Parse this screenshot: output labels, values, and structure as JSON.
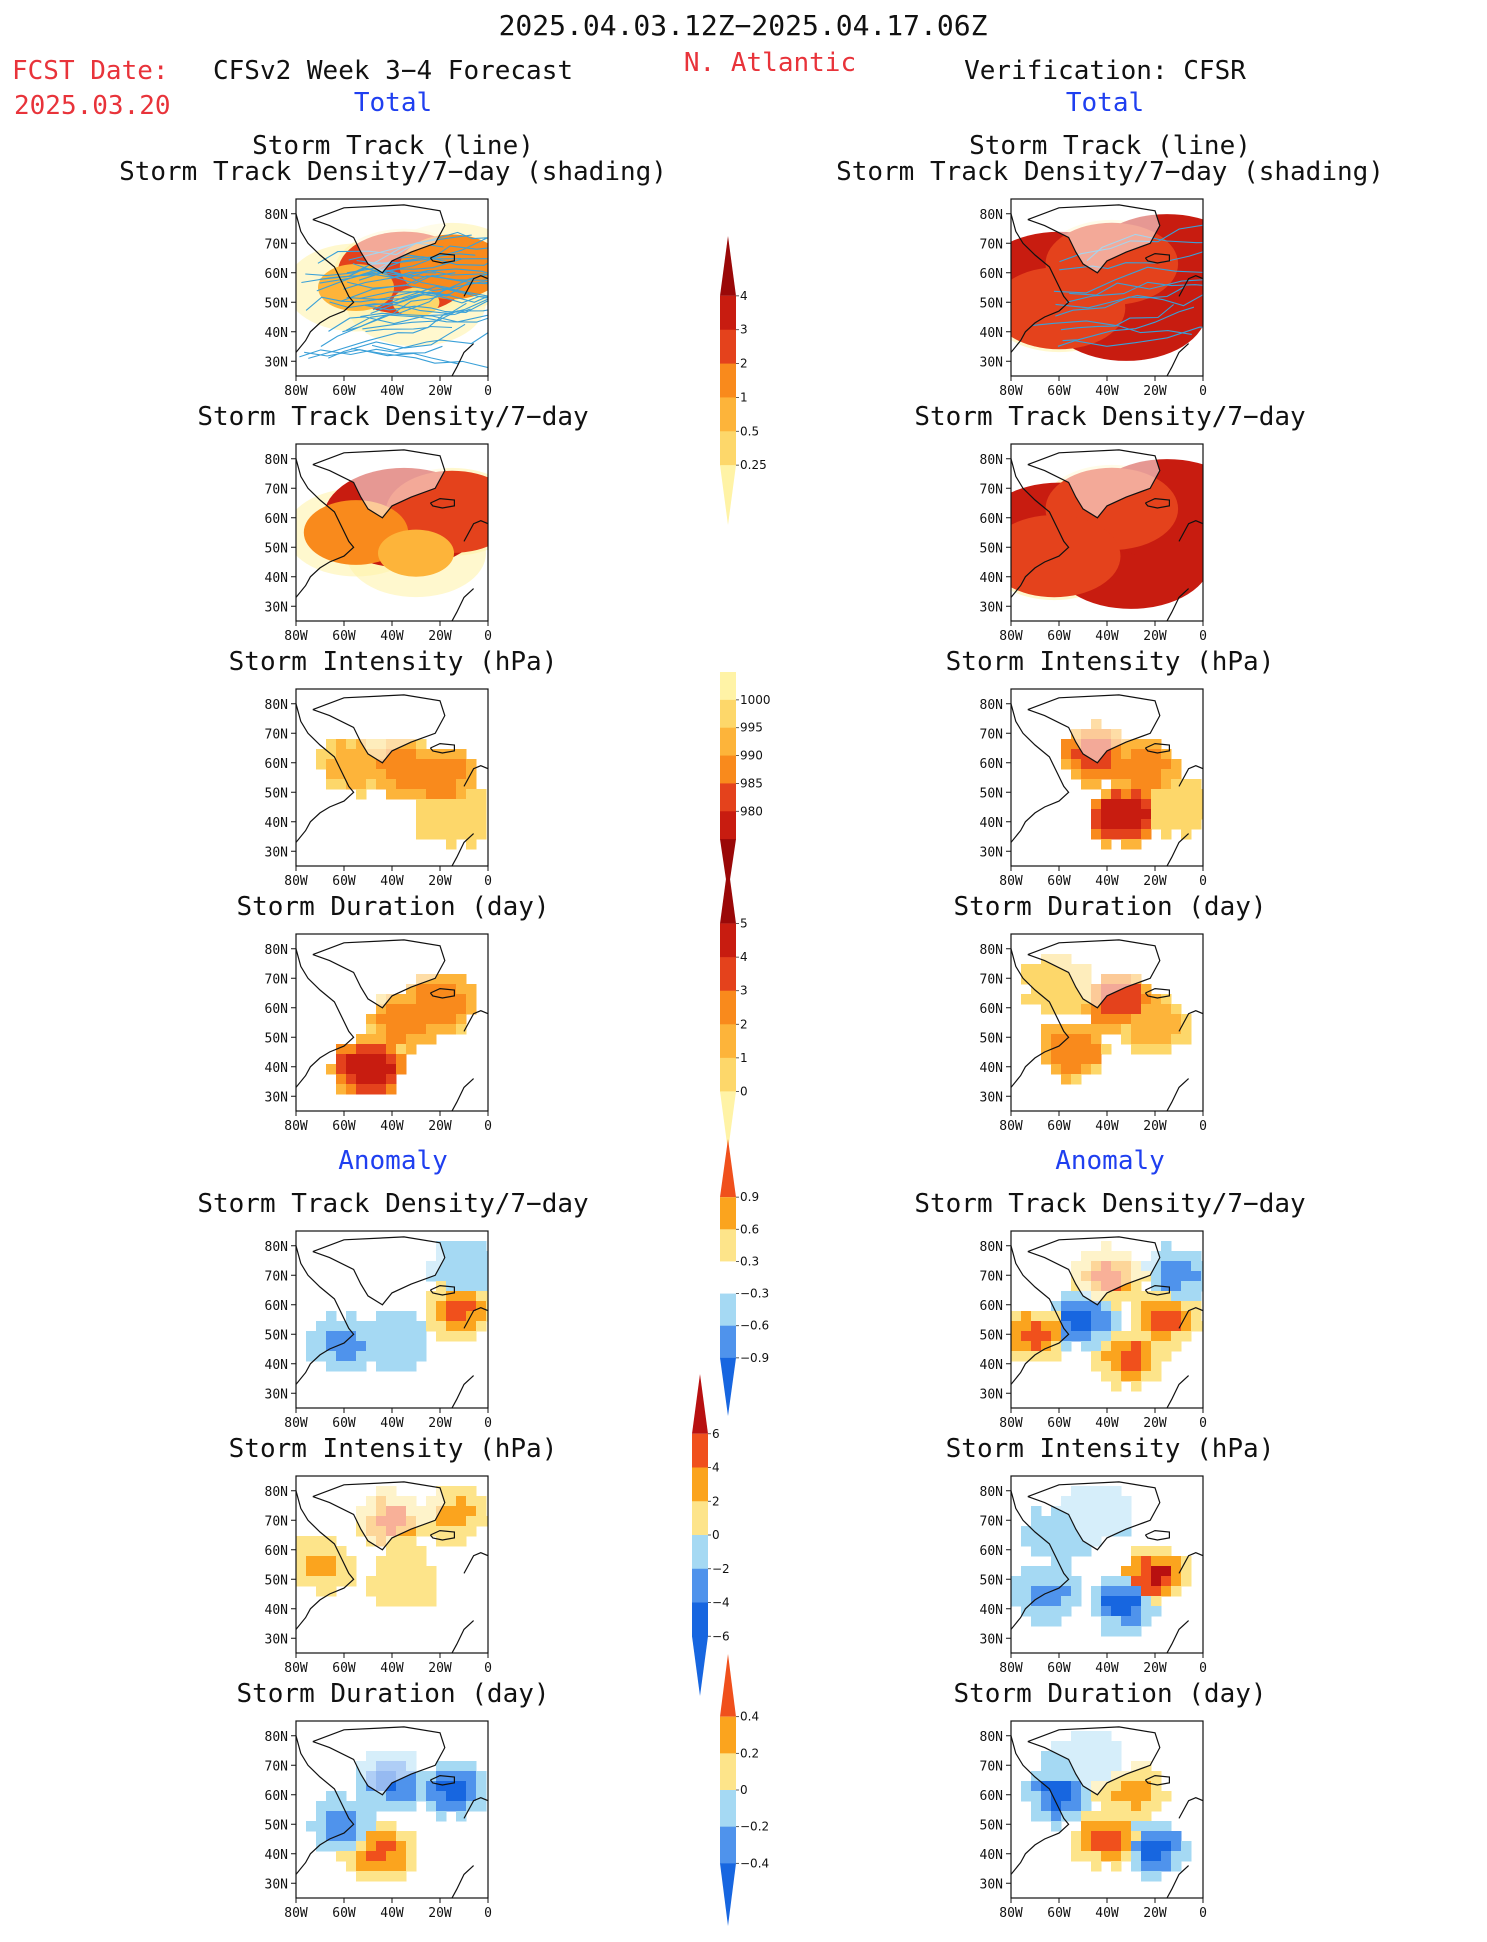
{
  "header": {
    "period": "2025.04.03.12Z−2025.04.17.06Z",
    "fcst_label": "FCST Date:",
    "fcst_date": "2025.03.20",
    "model_title": "CFSv2 Week 3−4 Forecast",
    "region": "N. Atlantic",
    "verification": "Verification: CFSR"
  },
  "sections": {
    "total": "Total",
    "anomaly": "Anomaly"
  },
  "titles": {
    "track_line": "Storm Track (line)",
    "track_shading": "Storm Track Density/7−day (shading)",
    "density": "Storm Track Density/7−day",
    "intensity": "Storm Intensity (hPa)",
    "duration": "Storm Duration (day)"
  },
  "map_axes": {
    "lat_ticks": [
      "80N",
      "70N",
      "60N",
      "50N",
      "40N",
      "30N"
    ],
    "lon_ticks": [
      "80W",
      "60W",
      "40W",
      "20W",
      "0"
    ]
  },
  "colors": {
    "title_red": "#e8333a",
    "title_blue": "#1f3ff0",
    "track_line": "#3aa0d8",
    "warm": [
      "#fff3a6",
      "#fdd76a",
      "#fdb43a",
      "#f98a1c",
      "#e4421c",
      "#c81c10",
      "#9a0808"
    ],
    "anom": [
      "#1766e0",
      "#4f93ec",
      "#a5d9f3",
      "#ffffff",
      "#fde48a",
      "#fba41e",
      "#f0501c",
      "#b81010"
    ]
  },
  "chart_data": [
    {
      "id": "fc_track",
      "type": "heatmap",
      "title": "Storm Track (line) / Storm Track Density/7−day (shading)",
      "source": "CFSv2 forecast",
      "section": "Total",
      "lines": true,
      "blobs": [
        {
          "lon": -35,
          "lat": 60,
          "level": 4
        },
        {
          "lon": -15,
          "lat": 62,
          "level": 3
        },
        {
          "lon": -55,
          "lat": 55,
          "level": 2
        },
        {
          "lon": -30,
          "lat": 50,
          "level": 1
        }
      ]
    },
    {
      "id": "an_track",
      "type": "heatmap",
      "title": "Storm Track (line) / Storm Track Density/7−day (shading)",
      "source": "CFSR verification",
      "section": "Total",
      "lines": true,
      "blobs": [
        {
          "lon": -60,
          "lat": 57,
          "level": 5
        },
        {
          "lon": -32,
          "lat": 47,
          "level": 5
        },
        {
          "lon": -15,
          "lat": 63,
          "level": 5
        },
        {
          "lon": -38,
          "lat": 63,
          "level": 4
        },
        {
          "lon": -60,
          "lat": 48,
          "level": 4
        }
      ]
    },
    {
      "id": "fc_density",
      "type": "heatmap",
      "title": "Storm Track Density/7−day",
      "source": "CFSv2 forecast",
      "section": "Total",
      "blobs": [
        {
          "lon": -35,
          "lat": 60,
          "level": 5
        },
        {
          "lon": -15,
          "lat": 62,
          "level": 4
        },
        {
          "lon": -55,
          "lat": 55,
          "level": 3
        },
        {
          "lon": -30,
          "lat": 48,
          "level": 2
        }
      ]
    },
    {
      "id": "an_density",
      "type": "heatmap",
      "title": "Storm Track Density/7−day",
      "source": "CFSR verification",
      "section": "Total",
      "blobs": [
        {
          "lon": -60,
          "lat": 55,
          "level": 5
        },
        {
          "lon": -30,
          "lat": 46,
          "level": 5
        },
        {
          "lon": -15,
          "lat": 63,
          "level": 5
        },
        {
          "lon": -38,
          "lat": 63,
          "level": 4
        },
        {
          "lon": -62,
          "lat": 47,
          "level": 4
        }
      ]
    },
    {
      "id": "fc_intensity",
      "type": "heatmap",
      "title": "Storm Intensity (hPa)",
      "source": "CFSv2 forecast",
      "section": "Total",
      "blocky": true,
      "blobs": [
        {
          "lon": -35,
          "lat": 58,
          "level": 3
        },
        {
          "lon": -20,
          "lat": 55,
          "level": 3
        },
        {
          "lon": -55,
          "lat": 60,
          "level": 2
        },
        {
          "lon": -15,
          "lat": 42,
          "level": 1
        }
      ]
    },
    {
      "id": "an_intensity",
      "type": "heatmap",
      "title": "Storm Intensity (hPa)",
      "source": "CFSR verification",
      "section": "Total",
      "blocky": true,
      "blobs": [
        {
          "lon": -45,
          "lat": 63,
          "level": 4
        },
        {
          "lon": -33,
          "lat": 42,
          "level": 5
        },
        {
          "lon": -25,
          "lat": 58,
          "level": 3
        },
        {
          "lon": -10,
          "lat": 45,
          "level": 1
        }
      ]
    },
    {
      "id": "fc_duration",
      "type": "heatmap",
      "title": "Storm Duration (day)",
      "source": "CFSv2 forecast",
      "section": "Total",
      "blocky": true,
      "blobs": [
        {
          "lon": -35,
          "lat": 55,
          "level": 3
        },
        {
          "lon": -50,
          "lat": 40,
          "level": 5
        },
        {
          "lon": -20,
          "lat": 62,
          "level": 3
        }
      ]
    },
    {
      "id": "an_duration",
      "type": "heatmap",
      "title": "Storm Duration (day)",
      "source": "CFSR verification",
      "section": "Total",
      "blocky": true,
      "blobs": [
        {
          "lon": -35,
          "lat": 62,
          "level": 4
        },
        {
          "lon": -55,
          "lat": 45,
          "level": 3
        },
        {
          "lon": -20,
          "lat": 55,
          "level": 2
        },
        {
          "lon": -60,
          "lat": 68,
          "level": 1
        }
      ]
    },
    {
      "id": "fc_anom_density",
      "type": "heatmap",
      "title": "Storm Track Density/7−day",
      "source": "CFSv2 forecast",
      "section": "Anomaly",
      "anomaly": true,
      "blocky": true,
      "blobs": [
        {
          "lon": -60,
          "lat": 47,
          "level": -2
        },
        {
          "lon": -38,
          "lat": 47,
          "level": -1
        },
        {
          "lon": -12,
          "lat": 58,
          "level": 3
        },
        {
          "lon": -10,
          "lat": 72,
          "level": -1
        }
      ]
    },
    {
      "id": "an_anom_density",
      "type": "heatmap",
      "title": "Storm Track Density/7−day",
      "source": "CFSR verification",
      "section": "Anomaly",
      "anomaly": true,
      "blocky": true,
      "blobs": [
        {
          "lon": -30,
          "lat": 42,
          "level": 3
        },
        {
          "lon": -50,
          "lat": 55,
          "level": -3
        },
        {
          "lon": -15,
          "lat": 55,
          "level": 3
        },
        {
          "lon": -40,
          "lat": 70,
          "level": 3
        },
        {
          "lon": -70,
          "lat": 50,
          "level": 3
        },
        {
          "lon": -10,
          "lat": 70,
          "level": -2
        }
      ]
    },
    {
      "id": "fc_anom_intensity",
      "type": "heatmap",
      "title": "Storm Intensity (hPa)",
      "source": "CFSv2 forecast",
      "section": "Anomaly",
      "anomaly": true,
      "blocky": true,
      "blobs": [
        {
          "lon": -40,
          "lat": 70,
          "level": 3
        },
        {
          "lon": -15,
          "lat": 72,
          "level": 2
        },
        {
          "lon": -35,
          "lat": 50,
          "level": 1
        },
        {
          "lon": -70,
          "lat": 55,
          "level": 2
        }
      ]
    },
    {
      "id": "an_anom_intensity",
      "type": "heatmap",
      "title": "Storm Intensity (hPa)",
      "source": "CFSR verification",
      "section": "Anomaly",
      "anomaly": true,
      "blocky": true,
      "blobs": [
        {
          "lon": -20,
          "lat": 51,
          "level": 4
        },
        {
          "lon": -33,
          "lat": 42,
          "level": -3
        },
        {
          "lon": -60,
          "lat": 65,
          "level": -1
        },
        {
          "lon": -65,
          "lat": 45,
          "level": -2
        },
        {
          "lon": -45,
          "lat": 72,
          "level": -1
        }
      ]
    },
    {
      "id": "fc_anom_duration",
      "type": "heatmap",
      "title": "Storm Duration (day)",
      "source": "CFSv2 forecast",
      "section": "Anomaly",
      "anomaly": true,
      "blocky": true,
      "blobs": [
        {
          "lon": -40,
          "lat": 65,
          "level": -3
        },
        {
          "lon": -15,
          "lat": 62,
          "level": -3
        },
        {
          "lon": -45,
          "lat": 40,
          "level": 3
        },
        {
          "lon": -60,
          "lat": 50,
          "level": -2
        }
      ]
    },
    {
      "id": "an_anom_duration",
      "type": "heatmap",
      "title": "Storm Duration (day)",
      "source": "CFSR verification",
      "section": "Anomaly",
      "anomaly": true,
      "blocky": true,
      "blobs": [
        {
          "lon": -60,
          "lat": 60,
          "level": -3
        },
        {
          "lon": -20,
          "lat": 42,
          "level": -3
        },
        {
          "lon": -40,
          "lat": 45,
          "level": 3
        },
        {
          "lon": -30,
          "lat": 60,
          "level": 2
        },
        {
          "lon": -50,
          "lat": 72,
          "level": -1
        }
      ]
    }
  ],
  "colorbars": [
    {
      "id": "cb_density",
      "labels": [
        "4",
        "3",
        "2",
        "1",
        "0.5",
        "0.25"
      ],
      "colors": [
        "#9a0808",
        "#c81c10",
        "#e4421c",
        "#f98a1c",
        "#fdb43a",
        "#fdd76a",
        "#fff3a6"
      ]
    },
    {
      "id": "cb_intensity",
      "labels": [
        "1000",
        "995",
        "990",
        "985",
        "980"
      ],
      "colors": [
        "#fff3a6",
        "#fdd76a",
        "#fdb43a",
        "#f98a1c",
        "#e4421c",
        "#c81c10",
        "#9a0808"
      ]
    },
    {
      "id": "cb_duration",
      "labels": [
        "5",
        "4",
        "3",
        "2",
        "1",
        "0"
      ],
      "colors": [
        "#9a0808",
        "#c81c10",
        "#e4421c",
        "#f98a1c",
        "#fdb43a",
        "#fdd76a",
        "#fff3a6"
      ]
    },
    {
      "id": "cb_anom_density",
      "labels": [
        "0.9",
        "0.6",
        "0.3",
        "−0.3",
        "−0.6",
        "−0.9"
      ],
      "colors": [
        "#f0501c",
        "#fba41e",
        "#fde48a",
        "#ffffff",
        "#a5d9f3",
        "#4f93ec",
        "#1766e0"
      ]
    },
    {
      "id": "cb_anom_intensity",
      "labels": [
        "6",
        "4",
        "2",
        "0",
        "−2",
        "−4",
        "−6"
      ],
      "colors": [
        "#b81010",
        "#f0501c",
        "#fba41e",
        "#fde48a",
        "#a5d9f3",
        "#4f93ec",
        "#1766e0",
        "#1766e0"
      ]
    },
    {
      "id": "cb_anom_duration",
      "labels": [
        "0.4",
        "0.2",
        "0",
        "−0.2",
        "−0.4"
      ],
      "colors": [
        "#f0501c",
        "#fba41e",
        "#fde48a",
        "#a5d9f3",
        "#4f93ec",
        "#1766e0"
      ]
    }
  ]
}
